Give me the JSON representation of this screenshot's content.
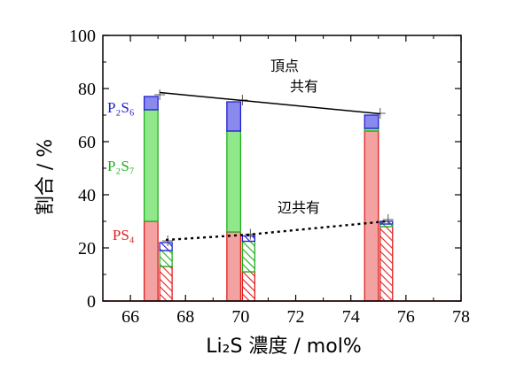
{
  "chart_data": {
    "type": "bar",
    "xlabel": "Li₂S 濃度 / mol%",
    "ylabel": "割合 / %",
    "xlim": [
      65,
      78
    ],
    "ylim": [
      0,
      100
    ],
    "xticks": [
      66,
      68,
      70,
      72,
      74,
      76,
      78
    ],
    "yticks": [
      0,
      20,
      40,
      60,
      80,
      100
    ],
    "stack_order": [
      "PS4",
      "P2S7",
      "P2S6"
    ],
    "colors": {
      "PS4": "#f4a1a1",
      "PS4_edge": "#e02020",
      "P2S7": "#90e88a",
      "P2S7_edge": "#20b020",
      "P2S6": "#8a8aee",
      "P2S6_edge": "#2020d0",
      "hatch_PS4": "#e02020",
      "hatch_P2S7": "#20b020",
      "hatch_P2S6": "#2020d0"
    },
    "series": [
      {
        "name": "頂点共有",
        "style": "solid",
        "points": [
          {
            "x": 67,
            "PS4": 30,
            "P2S7": 42,
            "P2S6": 5
          },
          {
            "x": 70,
            "PS4": 26,
            "P2S7": 38,
            "P2S6": 11
          },
          {
            "x": 75,
            "PS4": 64,
            "P2S7": 1,
            "P2S6": 5
          }
        ],
        "trend": [
          [
            67,
            78.5
          ],
          [
            70,
            75.5
          ],
          [
            75,
            70.5
          ]
        ]
      },
      {
        "name": "辺共有",
        "style": "hatched",
        "points": [
          {
            "x": 67,
            "PS4": 13,
            "P2S7": 6,
            "P2S6": 3
          },
          {
            "x": 70,
            "PS4": 11,
            "P2S7": 11.5,
            "P2S6": 2
          },
          {
            "x": 75,
            "PS4": 28,
            "P2S7": 1,
            "P2S6": 1
          }
        ],
        "trend": [
          [
            67,
            23
          ],
          [
            70,
            25
          ],
          [
            75,
            30
          ]
        ]
      }
    ],
    "annotations": {
      "vertex_line1": "頂点",
      "vertex_line2": "共有",
      "edge": "辺共有"
    },
    "species_labels": [
      {
        "key": "P2S6",
        "text": "P₂S₆",
        "color": "#2020d0",
        "y": 73
      },
      {
        "key": "P2S7",
        "text": "P₂S₇",
        "color": "#20b020",
        "y": 51
      },
      {
        "key": "PS4",
        "text": "PS₄",
        "color": "#e02020",
        "y": 25
      }
    ]
  }
}
